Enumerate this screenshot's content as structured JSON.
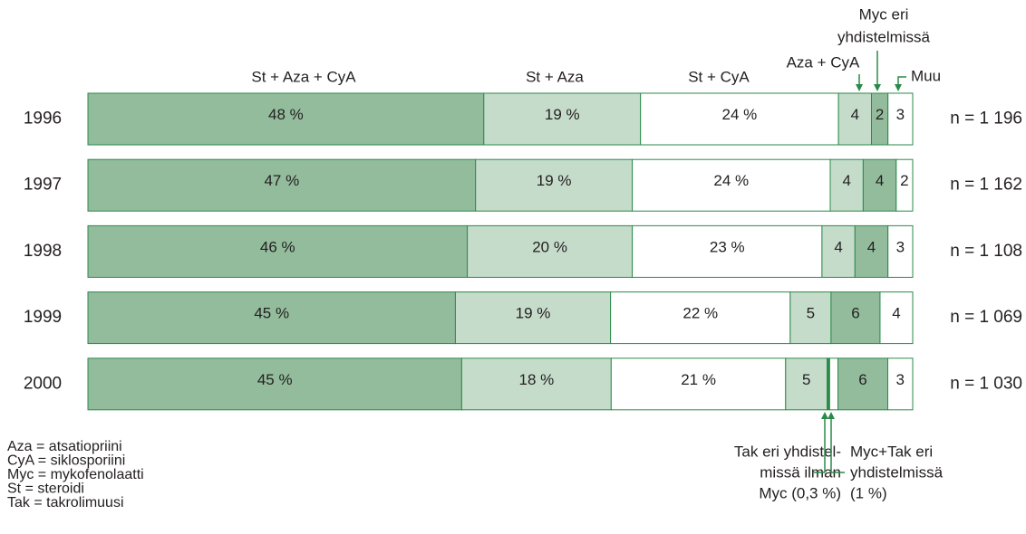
{
  "chart_data": {
    "type": "stacked-bar-horizontal",
    "categories": [
      "1996",
      "1997",
      "1998",
      "1999",
      "2000"
    ],
    "xlim": [
      0,
      100
    ],
    "series": [
      {
        "name": [
          "St + Aza + CyA"
        ],
        "color": "#93bc9c",
        "values": [
          48,
          47,
          46,
          45,
          45
        ],
        "value_labels": [
          "48 %",
          "47 %",
          "46 %",
          "45 %",
          "45 %"
        ]
      },
      {
        "name": [
          "St + Aza"
        ],
        "color": "#c6dccb",
        "values": [
          19,
          19,
          20,
          19,
          18
        ],
        "value_labels": [
          "19 %",
          "19 %",
          "20 %",
          "19 %",
          "18 %"
        ]
      },
      {
        "name": [
          "St + CyA"
        ],
        "color": "#ffffff",
        "values": [
          24,
          24,
          23,
          22,
          21
        ],
        "value_labels": [
          "24 %",
          "24 %",
          "23 %",
          "22 %",
          "21 %"
        ]
      },
      {
        "name": [
          "Aza + CyA"
        ],
        "color": "#c6dccb",
        "values": [
          4,
          4,
          4,
          5,
          5
        ],
        "value_labels": [
          "4",
          "4",
          "4",
          "5",
          "5"
        ]
      },
      {
        "name": [
          "Tak eri yhdistel-",
          "missä ilman",
          "Myc (0,3 %)"
        ],
        "color": "#2a8a4a",
        "values": [
          null,
          null,
          null,
          null,
          0.3
        ]
      },
      {
        "name": [
          "Myc+Tak eri",
          "yhdistelmissä",
          "(1 %)"
        ],
        "color": "#ffffff",
        "values": [
          null,
          null,
          null,
          null,
          1
        ]
      },
      {
        "name": [
          "Myc eri",
          "yhdistelmissä"
        ],
        "color": "#93bc9c",
        "values": [
          2,
          4,
          4,
          6,
          6
        ],
        "value_labels": [
          "2",
          "4",
          "4",
          "6",
          "6"
        ]
      },
      {
        "name": [
          "Muu"
        ],
        "color": "#ffffff",
        "values": [
          3,
          2,
          3,
          4,
          3
        ],
        "value_labels": [
          "3",
          "2",
          "3",
          "4",
          "3"
        ]
      }
    ],
    "n_labels": [
      "n = 1 196",
      "n = 1 162",
      "n = 1 108",
      "n = 1 069",
      "n = 1 030"
    ],
    "notes": [
      "Aza = atsatiopriini",
      "CyA = siklosporiini",
      "Myc = mykofenolaatti",
      "St = steroidi",
      "Tak = takrolimuusi"
    ]
  }
}
